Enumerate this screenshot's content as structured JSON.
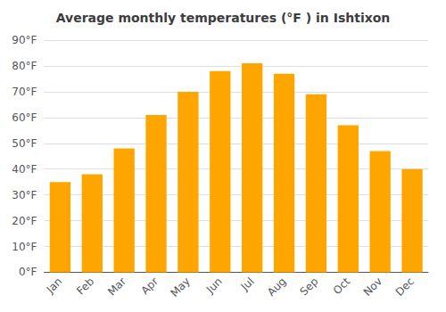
{
  "chart_data": {
    "type": "bar",
    "title": "Average monthly temperatures (°F ) in Ishtixon",
    "categories": [
      "Jan",
      "Feb",
      "Mar",
      "Apr",
      "May",
      "Jun",
      "Jul",
      "Aug",
      "Sep",
      "Oct",
      "Nov",
      "Dec"
    ],
    "values": [
      35,
      38,
      48,
      61,
      70,
      78,
      81,
      77,
      69,
      57,
      47,
      40
    ],
    "color": "#FFA500",
    "ylim": [
      0,
      90
    ],
    "yticks": [
      {
        "value": 0,
        "label": "0°F"
      },
      {
        "value": 10,
        "label": "10°F"
      },
      {
        "value": 20,
        "label": "20°F"
      },
      {
        "value": 30,
        "label": "30°F"
      },
      {
        "value": 40,
        "label": "40°F"
      },
      {
        "value": 50,
        "label": "50°F"
      },
      {
        "value": 60,
        "label": "60°F"
      },
      {
        "value": 70,
        "label": "70°F"
      },
      {
        "value": 80,
        "label": "80°F"
      },
      {
        "value": 90,
        "label": "90°F"
      }
    ],
    "grid": true
  }
}
